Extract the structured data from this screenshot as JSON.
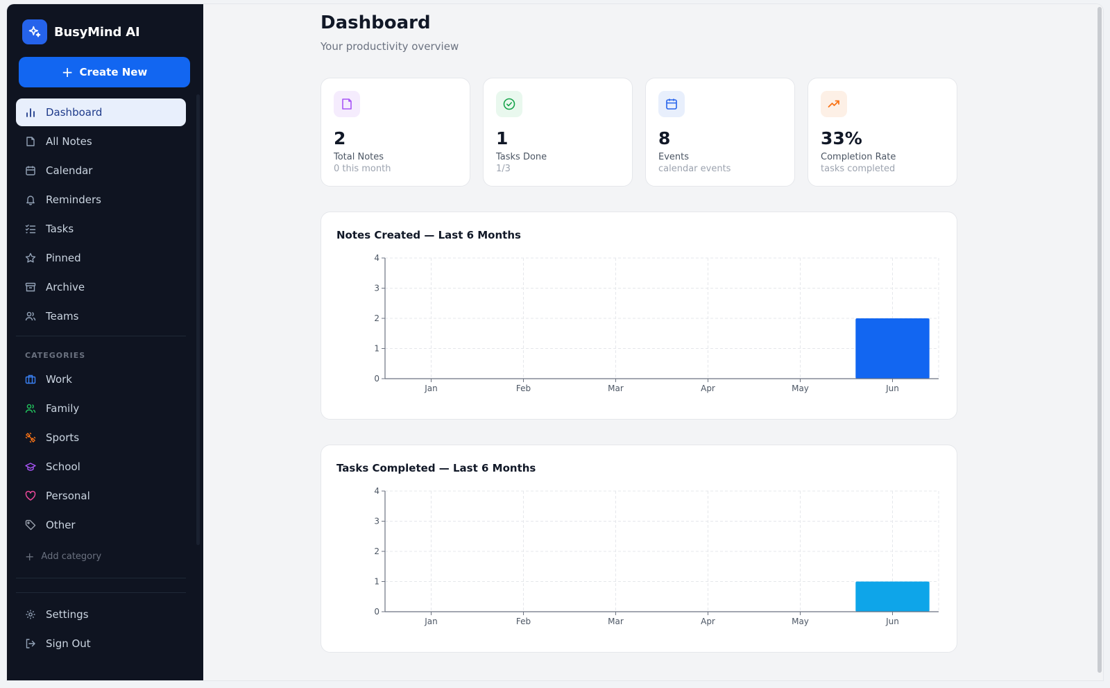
{
  "brand": {
    "name": "BusyMind AI"
  },
  "sidebar": {
    "create_label": "Create New",
    "nav": [
      {
        "label": "Dashboard",
        "icon": "bar-chart-icon",
        "active": true
      },
      {
        "label": "All Notes",
        "icon": "note-icon"
      },
      {
        "label": "Calendar",
        "icon": "calendar-icon"
      },
      {
        "label": "Reminders",
        "icon": "bell-icon"
      },
      {
        "label": "Tasks",
        "icon": "checklist-icon"
      },
      {
        "label": "Pinned",
        "icon": "star-icon"
      },
      {
        "label": "Archive",
        "icon": "archive-icon"
      },
      {
        "label": "Teams",
        "icon": "users-icon"
      }
    ],
    "categories_title": "CATEGORIES",
    "categories": [
      {
        "label": "Work",
        "icon": "briefcase-icon",
        "color": "#3b82f6"
      },
      {
        "label": "Family",
        "icon": "users-icon",
        "color": "#22c55e"
      },
      {
        "label": "Sports",
        "icon": "dumbbell-icon",
        "color": "#f97316"
      },
      {
        "label": "School",
        "icon": "graduation-cap-icon",
        "color": "#a855f7"
      },
      {
        "label": "Personal",
        "icon": "heart-icon",
        "color": "#ec4899"
      },
      {
        "label": "Other",
        "icon": "tag-icon",
        "color": "#9ca3af"
      }
    ],
    "add_category_label": "Add category",
    "bottom": [
      {
        "label": "Settings",
        "icon": "gear-icon"
      },
      {
        "label": "Sign Out",
        "icon": "sign-out-icon"
      }
    ]
  },
  "header": {
    "title": "Dashboard",
    "subtitle": "Your productivity overview"
  },
  "stats": [
    {
      "value": "2",
      "label": "Total Notes",
      "sub": "0 this month",
      "icon": "note-icon",
      "color": "#a855f7",
      "bg": "#f5ecfd"
    },
    {
      "value": "1",
      "label": "Tasks Done",
      "sub": "1/3",
      "icon": "check-circle-icon",
      "color": "#16a34a",
      "bg": "#e9f8ee"
    },
    {
      "value": "8",
      "label": "Events",
      "sub": "calendar events",
      "icon": "calendar-icon",
      "color": "#2563eb",
      "bg": "#e8effc"
    },
    {
      "value": "33%",
      "label": "Completion Rate",
      "sub": "tasks completed",
      "icon": "trending-up-icon",
      "color": "#f97316",
      "bg": "#fdf0e6"
    }
  ],
  "chart_data": [
    {
      "type": "bar",
      "title": "Notes Created — Last 6 Months",
      "categories": [
        "Jan",
        "Feb",
        "Mar",
        "Apr",
        "May",
        "Jun"
      ],
      "values": [
        0,
        0,
        0,
        0,
        0,
        2
      ],
      "ylim": [
        0,
        4
      ],
      "yticks": [
        "0",
        "1",
        "2",
        "3",
        "4"
      ],
      "color": "#1266f1",
      "grid": true
    },
    {
      "type": "bar",
      "title": "Tasks Completed — Last 6 Months",
      "categories": [
        "Jan",
        "Feb",
        "Mar",
        "Apr",
        "May",
        "Jun"
      ],
      "values": [
        0,
        0,
        0,
        0,
        0,
        1
      ],
      "ylim": [
        0,
        4
      ],
      "yticks": [
        "0",
        "1",
        "2",
        "3",
        "4"
      ],
      "color": "#0ea5e9",
      "grid": true
    }
  ]
}
